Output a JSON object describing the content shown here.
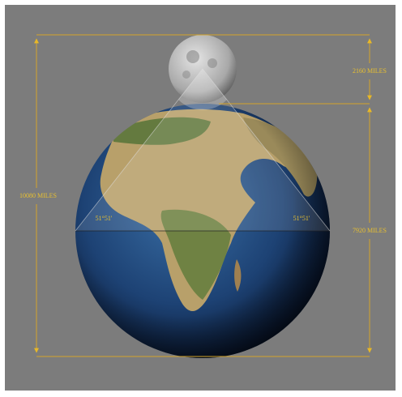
{
  "labels": {
    "moon_diameter": "2160 MILES",
    "total_height": "10080 MILES",
    "earth_diameter": "7920 MILES",
    "angle_left": "51°51'",
    "angle_right": "51°51'"
  }
}
